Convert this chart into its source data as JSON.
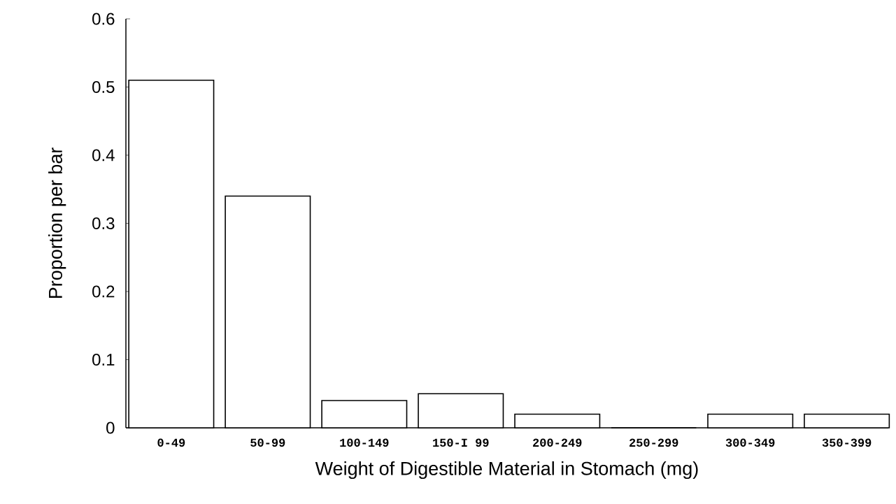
{
  "chart_data": {
    "type": "bar",
    "xlabel": "Weight of Digestible Material in Stomach (mg)",
    "ylabel": "Proportion per bar",
    "categories": [
      "0-49",
      "50-99",
      "100-149",
      "150-I 99",
      "200-249",
      "250-299",
      "300-349",
      "350-399"
    ],
    "values": [
      0.51,
      0.34,
      0.04,
      0.05,
      0.02,
      0,
      0.02,
      0.02
    ],
    "color": "#ffffff",
    "ylim": [
      0,
      0.6
    ],
    "yticks": [
      0,
      0.1,
      0.2,
      0.3,
      0.4,
      0.5,
      0.6
    ]
  }
}
